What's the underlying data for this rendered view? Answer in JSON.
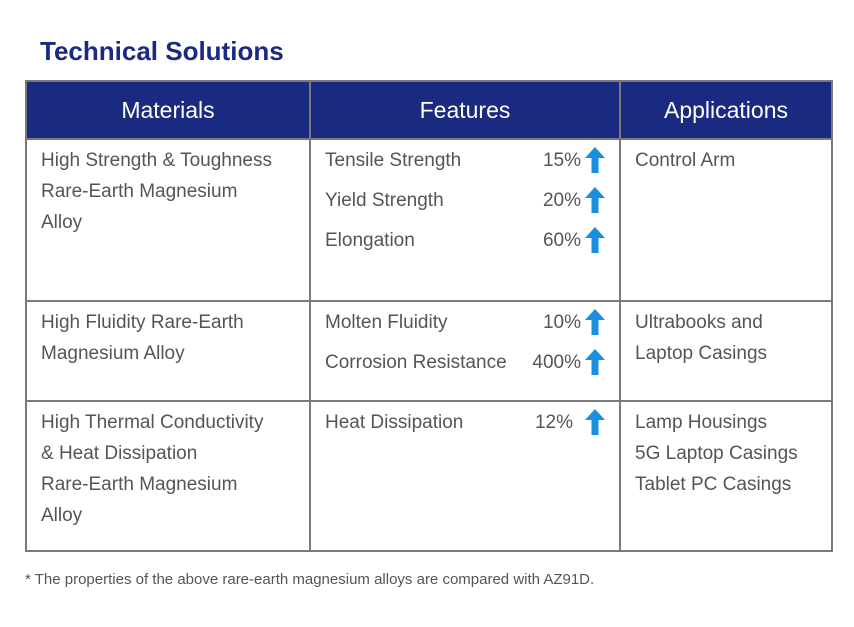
{
  "title": "Technical Solutions",
  "headers": [
    "Materials",
    "Features",
    "Applications"
  ],
  "rows": [
    {
      "material": [
        "High Strength & Toughness",
        "Rare-Earth Magnesium",
        "Alloy"
      ],
      "features": [
        {
          "name": "Tensile Strength",
          "value": "15%"
        },
        {
          "name": "Yield Strength",
          "value": "20%"
        },
        {
          "name": "Elongation",
          "value": "60%"
        }
      ],
      "applications": [
        "Control Arm"
      ]
    },
    {
      "material": [
        "High Fluidity Rare-Earth",
        "Magnesium Alloy"
      ],
      "features": [
        {
          "name": "Molten Fluidity",
          "value": "10%"
        },
        {
          "name": "Corrosion Resistance",
          "value": "400%"
        }
      ],
      "applications": [
        "Ultrabooks and",
        "Laptop Casings"
      ]
    },
    {
      "material": [
        "High Thermal Conductivity",
        "& Heat Dissipation",
        "Rare-Earth Magnesium",
        "Alloy"
      ],
      "features": [
        {
          "name": "Heat Dissipation",
          "value": "12%"
        }
      ],
      "applications": [
        "Lamp Housings",
        "5G Laptop Casings",
        "Tablet PC Casings"
      ]
    }
  ],
  "footnote": "* The properties of the above rare-earth magnesium alloys are compared with AZ91D.",
  "colors": {
    "header_bg": "#1a2a80",
    "arrow": "#1a8fe0",
    "border": "#7a7a7a"
  },
  "icons": {
    "increase": "arrow-up-icon"
  }
}
